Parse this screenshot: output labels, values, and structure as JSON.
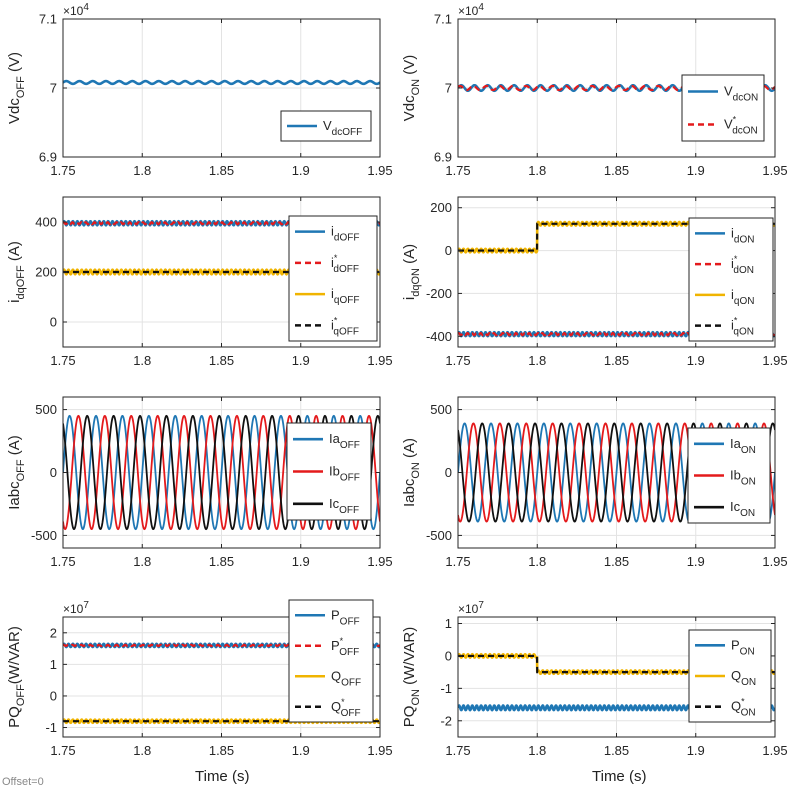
{
  "figure": {
    "xlabel": "Time (s)",
    "offset_note": "Offset=0"
  },
  "chart_data": [
    {
      "id": "vdc-off",
      "type": "line",
      "ylabel": "Vdc",
      "ylabel_sub": "OFF",
      "ylabel_unit": " (V)",
      "xlim": [
        1.75,
        1.95
      ],
      "ylim": [
        69000,
        71000
      ],
      "xticks": [
        "1.75",
        "1.8",
        "1.85",
        "1.9",
        "1.95"
      ],
      "yticks": [
        {
          "v": 69000,
          "label": "6.9"
        },
        {
          "v": 70000,
          "label": "7"
        },
        {
          "v": 71000,
          "label": "7.1"
        }
      ],
      "exponent": "4",
      "grid": true,
      "legend_position": "bottom-right",
      "series": [
        {
          "name": "V",
          "sub": "dcOFF",
          "sup": "",
          "color": "#1f77b4",
          "dash": "",
          "level": 70080,
          "ripple": 20,
          "freq": 120
        }
      ]
    },
    {
      "id": "vdc-on",
      "type": "line",
      "ylabel": "Vdc",
      "ylabel_sub": "ON",
      "ylabel_unit": " (V)",
      "xlim": [
        1.75,
        1.95
      ],
      "ylim": [
        69000,
        71000
      ],
      "xticks": [
        "1.75",
        "1.8",
        "1.85",
        "1.9",
        "1.95"
      ],
      "yticks": [
        {
          "v": 69000,
          "label": "6.9"
        },
        {
          "v": 70000,
          "label": "7"
        },
        {
          "v": 71000,
          "label": "7.1"
        }
      ],
      "exponent": "4",
      "grid": true,
      "legend_position": "top-right",
      "series": [
        {
          "name": "V",
          "sub": "dcON",
          "sup": "",
          "color": "#1f77b4",
          "dash": "",
          "level": 70000,
          "ripple": 40,
          "freq": 120
        },
        {
          "name": "V",
          "sub": "dcON",
          "sup": "*",
          "color": "#e41a1c",
          "dash": "6,4",
          "level": 70000,
          "ripple": 30,
          "freq": 120
        }
      ]
    },
    {
      "id": "idq-off",
      "type": "line",
      "ylabel": "i",
      "ylabel_sub": "dqOFF",
      "ylabel_unit": " (A)",
      "xlim": [
        1.75,
        1.95
      ],
      "ylim": [
        -100,
        500
      ],
      "xticks": [
        "1.75",
        "1.8",
        "1.85",
        "1.9",
        "1.95"
      ],
      "yticks": [
        {
          "v": 0,
          "label": "0"
        },
        {
          "v": 200,
          "label": "200"
        },
        {
          "v": 400,
          "label": "400"
        }
      ],
      "exponent": "",
      "grid": true,
      "legend_position": "right",
      "series": [
        {
          "name": "i",
          "sub": "dOFF",
          "sup": "",
          "color": "#1f77b4",
          "dash": "",
          "level": 395,
          "ripple": 8,
          "freq": 360
        },
        {
          "name": "i",
          "sub": "dOFF",
          "sup": "*",
          "color": "#e41a1c",
          "dash": "6,4",
          "level": 395,
          "ripple": 4,
          "freq": 360
        },
        {
          "name": "i",
          "sub": "qOFF",
          "sup": "",
          "color": "#f0b400",
          "dash": "",
          "level": 200,
          "ripple": 9,
          "freq": 360
        },
        {
          "name": "i",
          "sub": "qOFF",
          "sup": "*",
          "color": "#111111",
          "dash": "6,4",
          "level": 200,
          "ripple": 0,
          "freq": 360
        }
      ]
    },
    {
      "id": "idq-on",
      "type": "line",
      "ylabel": "i",
      "ylabel_sub": "dqON",
      "ylabel_unit": " (A)",
      "xlim": [
        1.75,
        1.95
      ],
      "ylim": [
        -450,
        250
      ],
      "xticks": [
        "1.75",
        "1.8",
        "1.85",
        "1.9",
        "1.95"
      ],
      "yticks": [
        {
          "v": -400,
          "label": "-400"
        },
        {
          "v": -200,
          "label": "-200"
        },
        {
          "v": 0,
          "label": "0"
        },
        {
          "v": 200,
          "label": "200"
        }
      ],
      "exponent": "",
      "grid": true,
      "legend_position": "right",
      "series": [
        {
          "name": "i",
          "sub": "dON",
          "sup": "",
          "color": "#1f77b4",
          "dash": "",
          "level": -390,
          "ripple": 9,
          "freq": 360
        },
        {
          "name": "i",
          "sub": "dON",
          "sup": "*",
          "color": "#e41a1c",
          "dash": "6,4",
          "level": -390,
          "ripple": 5,
          "freq": 360
        },
        {
          "name": "i",
          "sub": "qON",
          "sup": "",
          "color": "#f0b400",
          "dash": "",
          "steps": [
            [
              1.75,
              0
            ],
            [
              1.8,
              125
            ]
          ],
          "ripple": 8,
          "freq": 360
        },
        {
          "name": "i",
          "sub": "qON",
          "sup": "*",
          "color": "#111111",
          "dash": "6,4",
          "steps": [
            [
              1.75,
              0
            ],
            [
              1.8,
              125
            ]
          ],
          "ripple": 0,
          "freq": 360
        }
      ]
    },
    {
      "id": "iabc-off",
      "type": "line",
      "ylabel": "Iabc",
      "ylabel_sub": "OFF",
      "ylabel_unit": " (A)",
      "xlim": [
        1.75,
        1.95
      ],
      "ylim": [
        -600,
        600
      ],
      "xticks": [
        "1.75",
        "1.8",
        "1.85",
        "1.9",
        "1.95"
      ],
      "yticks": [
        {
          "v": -500,
          "label": "-500"
        },
        {
          "v": 0,
          "label": "0"
        },
        {
          "v": 500,
          "label": "500"
        }
      ],
      "exponent": "",
      "grid": true,
      "legend_position": "right",
      "series": [
        {
          "name": "Ia",
          "sub": "OFF",
          "sup": "",
          "color": "#1f77b4",
          "dash": "",
          "amplitude": 450,
          "freq": 60,
          "phase_deg": 0
        },
        {
          "name": "Ib",
          "sub": "OFF",
          "sup": "",
          "color": "#e41a1c",
          "dash": "",
          "amplitude": 450,
          "freq": 60,
          "phase_deg": -120
        },
        {
          "name": "Ic",
          "sub": "OFF",
          "sup": "",
          "color": "#111111",
          "dash": "",
          "amplitude": 450,
          "freq": 60,
          "phase_deg": 120
        }
      ]
    },
    {
      "id": "iabc-on",
      "type": "line",
      "ylabel": "Iabc",
      "ylabel_sub": "ON",
      "ylabel_unit": " (A)",
      "xlim": [
        1.75,
        1.95
      ],
      "ylim": [
        -600,
        600
      ],
      "xticks": [
        "1.75",
        "1.8",
        "1.85",
        "1.9",
        "1.95"
      ],
      "yticks": [
        {
          "v": -500,
          "label": "-500"
        },
        {
          "v": 0,
          "label": "0"
        },
        {
          "v": 500,
          "label": "500"
        }
      ],
      "exponent": "",
      "grid": true,
      "legend_position": "right",
      "series": [
        {
          "name": "Ia",
          "sub": "ON",
          "sup": "",
          "color": "#1f77b4",
          "dash": "",
          "amplitude": 390,
          "freq": 60,
          "phase_deg": 0
        },
        {
          "name": "Ib",
          "sub": "ON",
          "sup": "",
          "color": "#e41a1c",
          "dash": "",
          "amplitude": 390,
          "freq": 60,
          "phase_deg": -120
        },
        {
          "name": "Ic",
          "sub": "ON",
          "sup": "",
          "color": "#111111",
          "dash": "",
          "amplitude": 390,
          "freq": 60,
          "phase_deg": 120
        }
      ]
    },
    {
      "id": "pq-off",
      "type": "line",
      "ylabel": "PQ",
      "ylabel_sub": "OFF",
      "ylabel_unit": "(W/VAR)",
      "xlim": [
        1.75,
        1.95
      ],
      "ylim": [
        -1.3,
        2.5
      ],
      "xticks": [
        "1.75",
        "1.8",
        "1.85",
        "1.9",
        "1.95"
      ],
      "yticks": [
        {
          "v": -1,
          "label": "-1"
        },
        {
          "v": 0,
          "label": "0"
        },
        {
          "v": 1,
          "label": "1"
        },
        {
          "v": 2,
          "label": "2"
        }
      ],
      "exponent": "7",
      "grid": true,
      "legend_position": "right",
      "series": [
        {
          "name": "P",
          "sub": "OFF",
          "sup": "",
          "color": "#1f77b4",
          "dash": "",
          "level": 1.6,
          "ripple": 0.05,
          "freq": 360
        },
        {
          "name": "P",
          "sub": "OFF",
          "sup": "*",
          "color": "#e41a1c",
          "dash": "6,4",
          "level": 1.6,
          "ripple": 0.02,
          "freq": 360
        },
        {
          "name": "Q",
          "sub": "OFF",
          "sup": "",
          "color": "#f0b400",
          "dash": "",
          "level": -0.8,
          "ripple": 0.05,
          "freq": 360
        },
        {
          "name": "Q",
          "sub": "OFF",
          "sup": "*",
          "color": "#111111",
          "dash": "6,4",
          "level": -0.8,
          "ripple": 0,
          "freq": 360
        }
      ]
    },
    {
      "id": "pq-on",
      "type": "line",
      "ylabel": "PQ",
      "ylabel_sub": "ON",
      "ylabel_unit": " (W/VAR)",
      "xlim": [
        1.75,
        1.95
      ],
      "ylim": [
        -2.5,
        1.2
      ],
      "xticks": [
        "1.75",
        "1.8",
        "1.85",
        "1.9",
        "1.95"
      ],
      "yticks": [
        {
          "v": -2,
          "label": "-2"
        },
        {
          "v": -1,
          "label": "-1"
        },
        {
          "v": 0,
          "label": "0"
        },
        {
          "v": 1,
          "label": "1"
        }
      ],
      "exponent": "7",
      "grid": true,
      "legend_position": "right",
      "series": [
        {
          "name": "P",
          "sub": "ON",
          "sup": "",
          "color": "#1f77b4",
          "dash": "",
          "level": -1.6,
          "ripple": 0.07,
          "freq": 360
        },
        {
          "name": "Q",
          "sub": "ON",
          "sup": "",
          "color": "#f0b400",
          "dash": "",
          "steps": [
            [
              1.75,
              0
            ],
            [
              1.8,
              -0.5
            ]
          ],
          "ripple": 0.05,
          "freq": 360
        },
        {
          "name": "Q",
          "sub": "ON",
          "sup": "*",
          "color": "#111111",
          "dash": "6,4",
          "steps": [
            [
              1.75,
              0
            ],
            [
              1.8,
              -0.5
            ]
          ],
          "ripple": 0,
          "freq": 360
        }
      ]
    }
  ]
}
